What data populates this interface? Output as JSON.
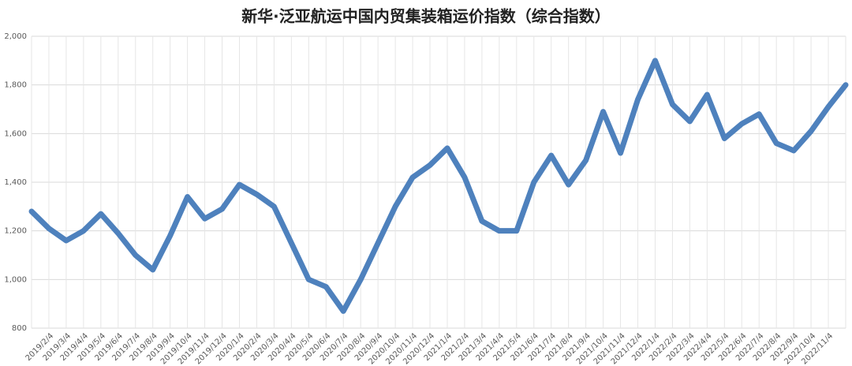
{
  "chart_data": {
    "type": "line",
    "title": "新华·泛亚航运中国内贸集装箱运价指数（综合指数）",
    "categories": [
      null,
      "2019/2/4",
      "2019/3/4",
      "2019/4/4",
      "2019/5/4",
      "2019/6/4",
      "2019/7/4",
      "2019/8/4",
      "2019/9/4",
      "2019/10/4",
      "2019/11/4",
      "2019/12/4",
      "2020/1/4",
      "2020/2/4",
      "2020/3/4",
      "2020/4/4",
      "2020/5/4",
      "2020/6/4",
      "2020/7/4",
      "2020/8/4",
      "2020/9/4",
      "2020/10/4",
      "2020/11/4",
      "2020/12/4",
      "2021/1/4",
      "2021/2/4",
      "2021/3/4",
      "2021/4/4",
      "2021/5/4",
      "2021/6/4",
      "2021/7/4",
      "2021/8/4",
      "2021/9/4",
      "2021/10/4",
      "2021/11/4",
      "2021/12/4",
      "2022/1/4",
      "2022/2/4",
      "2022/3/4",
      "2022/4/4",
      "2022/5/4",
      "2022/6/4",
      "2022/7/4",
      "2022/8/4",
      "2022/9/4",
      "2022/10/4",
      "2022/11/4",
      null
    ],
    "series": [
      {
        "name": "综合指数",
        "color": "#4e81bd",
        "values": [
          1280,
          1210,
          1160,
          1200,
          1270,
          1190,
          1100,
          1040,
          1180,
          1340,
          1250,
          1290,
          1390,
          1350,
          1300,
          1150,
          1000,
          970,
          870,
          1000,
          1150,
          1300,
          1420,
          1470,
          1540,
          1420,
          1240,
          1200,
          1200,
          1400,
          1510,
          1390,
          1490,
          1690,
          1520,
          1740,
          1900,
          1720,
          1650,
          1760,
          1580,
          1640,
          1680,
          1560,
          1530,
          1610,
          1710,
          1800
        ]
      }
    ],
    "ylim": [
      800,
      2000
    ],
    "yticks": [
      800,
      {
        "value": 1000,
        "label": "1,000"
      },
      {
        "value": 1200,
        "label": "1,200"
      },
      {
        "value": 1400,
        "label": "1,400"
      },
      {
        "value": 1600,
        "label": "1,600"
      },
      {
        "value": 1800,
        "label": "1,800"
      },
      {
        "value": 2000,
        "label": "2,000"
      }
    ],
    "grid": true
  }
}
